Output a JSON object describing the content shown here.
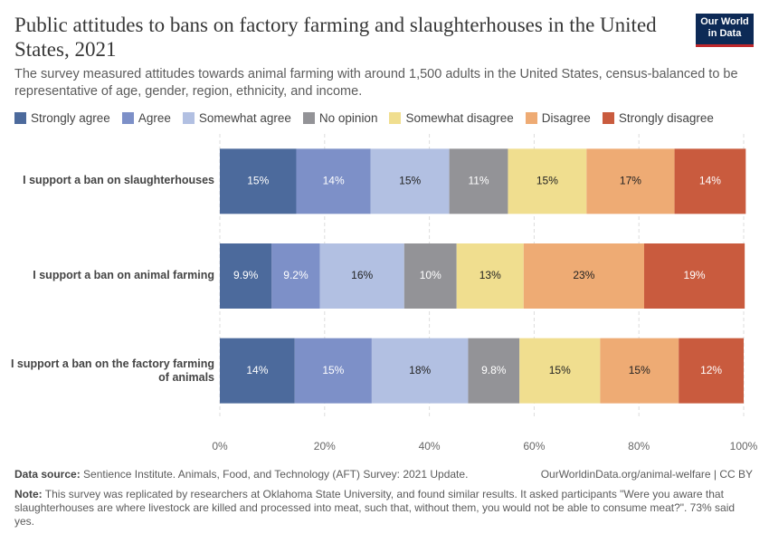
{
  "chart_data": {
    "type": "stacked-bar-horizontal",
    "title": "Public attitudes to bans on factory farming and slaughterhouses in the United States, 2021",
    "subtitle": "The survey measured attitudes towards animal farming with around 1,500 adults in the United States, census-balanced to be representative of age, gender, region, ethnicity, and income.",
    "logo": [
      "Our World",
      "in Data"
    ],
    "categories": [
      "I support a ban on slaughterhouses",
      "I support a ban on animal farming",
      "I support a ban on the factory farming of animals"
    ],
    "series": [
      {
        "name": "Strongly agree",
        "color": "#4c6a9c",
        "values": [
          14.6,
          9.9,
          14.3
        ],
        "value_labels": [
          "15%",
          "9.9%",
          "14%"
        ]
      },
      {
        "name": "Agree",
        "color": "#7d90c8",
        "values": [
          14.2,
          9.2,
          14.7
        ],
        "value_labels": [
          "14%",
          "9.2%",
          "15%"
        ]
      },
      {
        "name": "Somewhat agree",
        "color": "#b2c0e2",
        "values": [
          15.0,
          16.1,
          18.4
        ],
        "value_labels": [
          "15%",
          "16%",
          "18%"
        ]
      },
      {
        "name": "No opinion",
        "color": "#939397",
        "values": [
          11.2,
          10.0,
          9.8
        ],
        "value_labels": [
          "11%",
          "10%",
          "9.8%"
        ]
      },
      {
        "name": "Somewhat disagree",
        "color": "#f0de8f",
        "values": [
          15.0,
          12.8,
          15.4
        ],
        "value_labels": [
          "15%",
          "13%",
          "15%"
        ]
      },
      {
        "name": "Disagree",
        "color": "#eeab74",
        "values": [
          16.8,
          23.0,
          15.0
        ],
        "value_labels": [
          "17%",
          "23%",
          "15%"
        ]
      },
      {
        "name": "Strongly disagree",
        "color": "#c95b3e",
        "values": [
          13.6,
          19.2,
          12.4
        ],
        "value_labels": [
          "14%",
          "19%",
          "12%"
        ]
      }
    ],
    "xlim": [
      0,
      100
    ],
    "xticks": [
      {
        "value": 0,
        "label": "0%"
      },
      {
        "value": 20,
        "label": "20%"
      },
      {
        "value": 40,
        "label": "40%"
      },
      {
        "value": 60,
        "label": "60%"
      },
      {
        "value": 80,
        "label": "80%"
      },
      {
        "value": 100,
        "label": "100%"
      }
    ],
    "grid": true,
    "source_label": "Data source:",
    "source": "Sentience Institute. Animals, Food, and Technology (AFT) Survey: 2021 Update.",
    "url": "OurWorldinData.org/animal-welfare | CC BY",
    "note_label": "Note:",
    "note": "This survey was replicated by researchers at Oklahoma State University, and found similar results. It asked participants \"Were you aware that slaughterhouses are where livestock are killed and processed into meat, such that, without them, you would not be able to consume meat?\". 73% said yes."
  }
}
